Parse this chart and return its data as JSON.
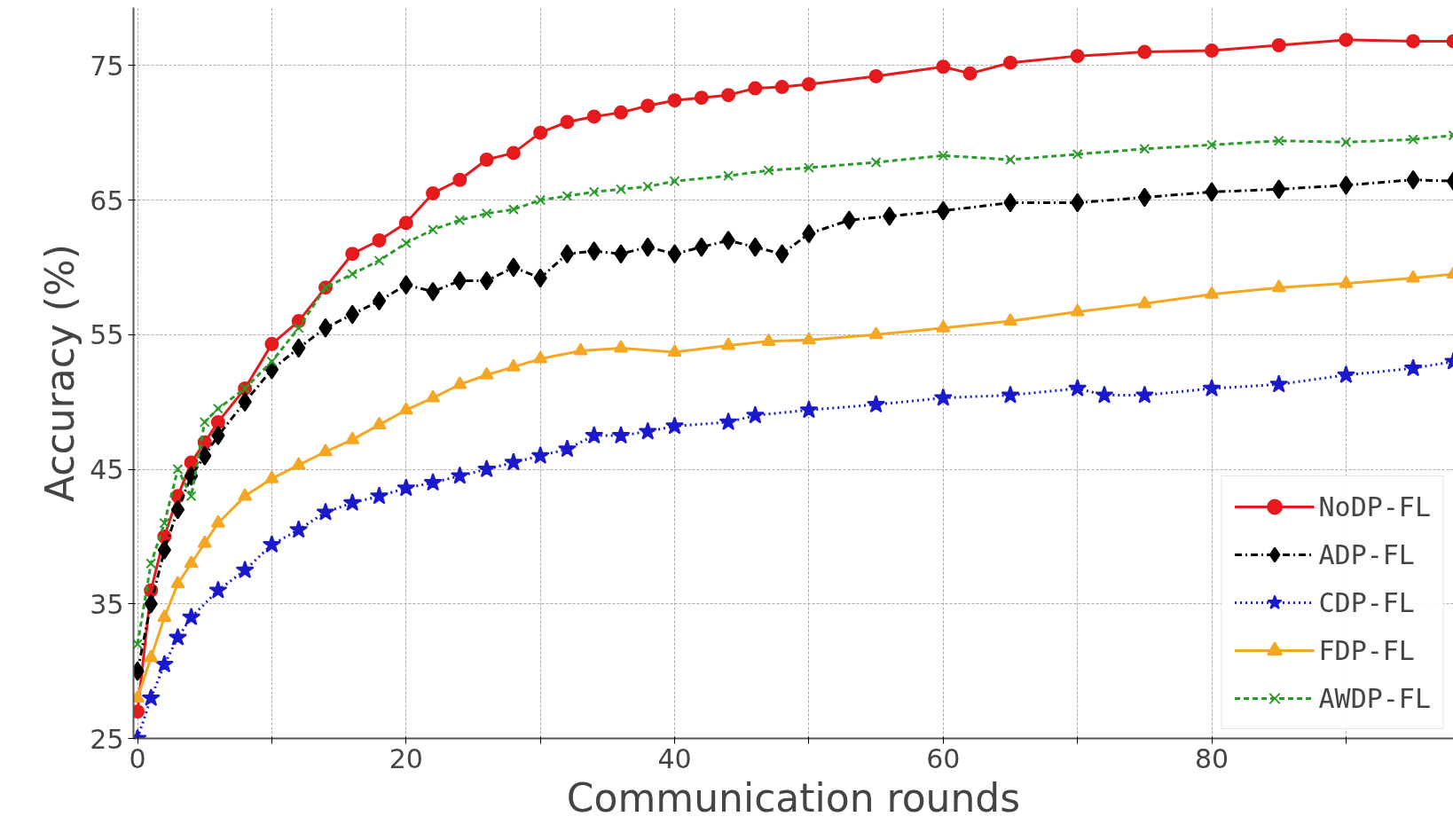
{
  "chart_data": {
    "type": "line",
    "xlabel": "Communication rounds",
    "ylabel": "Accuracy (%)",
    "xlim": [
      -0.3,
      98
    ],
    "ylim": [
      25,
      79.3
    ],
    "xticks": [
      0,
      {
        "value": 10,
        "label": null
      },
      20,
      {
        "value": 30,
        "label": null
      },
      40,
      {
        "value": 50,
        "label": null
      },
      60,
      {
        "value": 70,
        "label": null
      },
      80,
      {
        "value": 90,
        "label": null
      }
    ],
    "yticks": [
      25,
      35,
      45,
      55,
      65,
      75
    ],
    "grid": true,
    "legend": "bottom right",
    "series": [
      {
        "name": "NoDP-FL",
        "color": "#e41a1c",
        "marker": "circle",
        "line_style": "solid",
        "x": [
          0,
          1,
          2,
          3,
          4,
          5,
          6,
          8,
          10,
          12,
          14,
          16,
          18,
          20,
          22,
          24,
          26,
          28,
          30,
          32,
          34,
          36,
          38,
          40,
          42,
          44,
          46,
          48,
          50,
          55,
          60,
          62,
          65,
          70,
          75,
          80,
          85,
          90,
          95,
          98
        ],
        "values": [
          27,
          36,
          40,
          43,
          45.5,
          47,
          48.5,
          51,
          54.3,
          56,
          58.5,
          61,
          62,
          63.3,
          65.5,
          66.5,
          68,
          68.5,
          70,
          70.8,
          71.2,
          71.5,
          72,
          72.4,
          72.6,
          72.8,
          73.3,
          73.4,
          73.6,
          74.2,
          74.9,
          74.4,
          75.2,
          75.7,
          76,
          76.1,
          76.5,
          76.9,
          76.8,
          76.8
        ]
      },
      {
        "name": "ADP-FL",
        "color": "#000000",
        "marker": "diamond",
        "line_style": "dashdot",
        "x": [
          0,
          1,
          2,
          3,
          4,
          5,
          6,
          8,
          10,
          12,
          14,
          16,
          18,
          20,
          22,
          24,
          26,
          28,
          30,
          32,
          34,
          36,
          38,
          40,
          42,
          44,
          46,
          48,
          50,
          53,
          56,
          60,
          65,
          70,
          75,
          80,
          85,
          90,
          95,
          98
        ],
        "values": [
          30,
          35,
          39,
          42,
          44.5,
          46,
          47.5,
          50,
          52.4,
          54,
          55.5,
          56.5,
          57.5,
          58.7,
          58.2,
          59,
          59,
          60,
          59.2,
          61,
          61.2,
          61,
          61.5,
          61,
          61.5,
          62,
          61.5,
          61,
          62.5,
          63.5,
          63.8,
          64.2,
          64.8,
          64.8,
          65.2,
          65.6,
          65.8,
          66.1,
          66.5,
          66.4
        ]
      },
      {
        "name": "CDP-FL",
        "color": "#1a1acc",
        "marker": "star",
        "line_style": "dotted",
        "x": [
          0,
          1,
          2,
          3,
          4,
          6,
          8,
          10,
          12,
          14,
          16,
          18,
          20,
          22,
          24,
          26,
          28,
          30,
          32,
          34,
          36,
          38,
          40,
          44,
          46,
          50,
          55,
          60,
          65,
          70,
          72,
          75,
          80,
          85,
          90,
          95,
          98
        ],
        "values": [
          25,
          28,
          30.5,
          32.5,
          34,
          36,
          37.5,
          39.4,
          40.5,
          41.8,
          42.5,
          43,
          43.6,
          44,
          44.5,
          45,
          45.5,
          46,
          46.5,
          47.5,
          47.5,
          47.8,
          48.2,
          48.5,
          49,
          49.4,
          49.8,
          50.3,
          50.5,
          51,
          50.5,
          50.5,
          51,
          51.3,
          52,
          52.5,
          53
        ]
      },
      {
        "name": "FDP-FL",
        "color": "#f5a623",
        "marker": "triangle",
        "line_style": "solid",
        "x": [
          0,
          1,
          2,
          3,
          4,
          5,
          6,
          8,
          10,
          12,
          14,
          16,
          18,
          20,
          22,
          24,
          26,
          28,
          30,
          33,
          36,
          40,
          44,
          47,
          50,
          55,
          60,
          65,
          70,
          75,
          80,
          85,
          90,
          95,
          98
        ],
        "values": [
          28,
          31,
          34,
          36.5,
          38,
          39.5,
          41,
          43,
          44.3,
          45.3,
          46.3,
          47.2,
          48.3,
          49.4,
          50.3,
          51.3,
          52,
          52.6,
          53.2,
          53.8,
          54,
          53.7,
          54.2,
          54.5,
          54.6,
          55,
          55.5,
          56,
          56.7,
          57.3,
          58,
          58.5,
          58.8,
          59.2,
          59.5
        ]
      },
      {
        "name": "AWDP-FL",
        "color": "#2a9a2a",
        "marker": "cross",
        "line_style": "dashed",
        "x": [
          0,
          1,
          2,
          3,
          4,
          5,
          6,
          8,
          10,
          12,
          14,
          16,
          18,
          20,
          22,
          24,
          26,
          28,
          30,
          32,
          34,
          36,
          38,
          40,
          44,
          47,
          50,
          55,
          60,
          65,
          70,
          75,
          80,
          85,
          90,
          95,
          98
        ],
        "values": [
          32,
          38,
          41,
          45,
          43,
          48.5,
          49.5,
          51,
          53,
          55.5,
          58.5,
          59.5,
          60.5,
          61.8,
          62.8,
          63.5,
          64,
          64.3,
          65,
          65.3,
          65.6,
          65.8,
          66,
          66.4,
          66.8,
          67.2,
          67.4,
          67.8,
          68.3,
          68,
          68.4,
          68.8,
          69.1,
          69.4,
          69.3,
          69.5,
          69.8
        ]
      }
    ]
  }
}
